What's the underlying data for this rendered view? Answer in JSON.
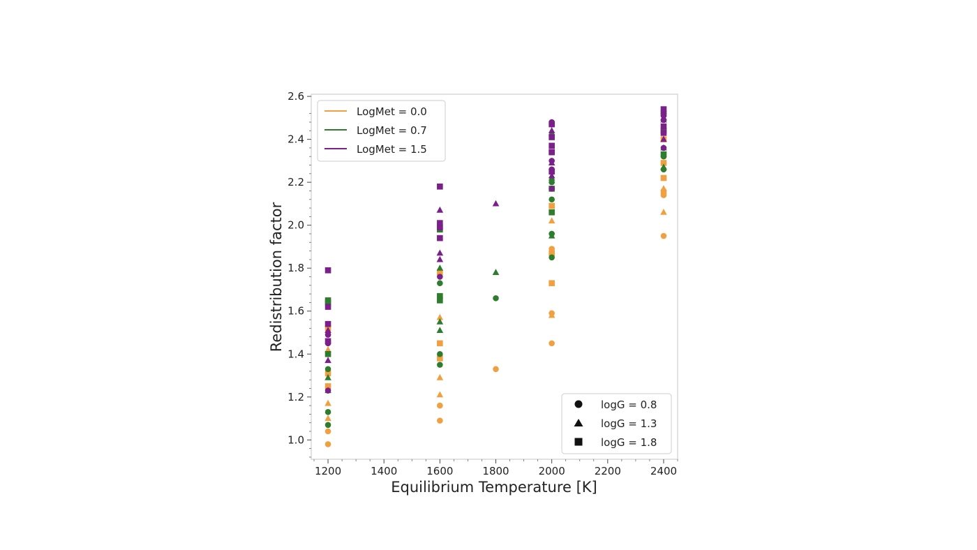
{
  "chart_data": {
    "type": "scatter",
    "xlabel": "Equilibrium Temperature [K]",
    "ylabel": "Redistribution factor",
    "xlim": [
      1140,
      2450
    ],
    "ylim": [
      0.91,
      2.61
    ],
    "xticks": [
      1200,
      1400,
      1600,
      1800,
      2000,
      2200,
      2400
    ],
    "yticks": [
      1.0,
      1.2,
      1.4,
      1.6,
      1.8,
      2.0,
      2.2,
      2.4,
      2.6
    ],
    "grid": false,
    "color_legend": {
      "position": "top-left",
      "entries": [
        {
          "label": "LogMet = 0.0",
          "color": "#F0A040"
        },
        {
          "label": "LogMet = 0.7",
          "color": "#2E7D2E"
        },
        {
          "label": "LogMet = 1.5",
          "color": "#7B1F8A"
        }
      ]
    },
    "marker_legend": {
      "position": "bottom-right",
      "entries": [
        {
          "label": "logG = 0.8",
          "marker": "circle"
        },
        {
          "label": "logG = 1.3",
          "marker": "triangle"
        },
        {
          "label": "logG = 1.8",
          "marker": "square"
        }
      ]
    },
    "series": [
      {
        "logmet": "0.0",
        "logg": "0.8",
        "color": "#F0A040",
        "marker": "circle",
        "points": [
          [
            1200,
            0.98
          ],
          [
            1200,
            1.04
          ],
          [
            1600,
            1.09
          ],
          [
            1600,
            1.16
          ],
          [
            1800,
            1.33
          ],
          [
            2000,
            1.45
          ],
          [
            2000,
            1.59
          ],
          [
            2000,
            1.89
          ],
          [
            2400,
            1.95
          ],
          [
            2400,
            2.14
          ],
          [
            2400,
            2.15
          ],
          [
            2400,
            2.16
          ]
        ]
      },
      {
        "logmet": "0.0",
        "logg": "1.3",
        "color": "#F0A040",
        "marker": "triangle",
        "points": [
          [
            1200,
            1.1
          ],
          [
            1200,
            1.17
          ],
          [
            1200,
            1.42
          ],
          [
            1600,
            1.21
          ],
          [
            1600,
            1.29
          ],
          [
            1600,
            1.57
          ],
          [
            2000,
            1.58
          ],
          [
            2000,
            2.02
          ],
          [
            2400,
            2.06
          ],
          [
            2400,
            2.17
          ]
        ]
      },
      {
        "logmet": "0.0",
        "logg": "1.8",
        "color": "#F0A040",
        "marker": "square",
        "points": [
          [
            1200,
            1.25
          ],
          [
            1200,
            1.31
          ],
          [
            1200,
            1.52
          ],
          [
            1600,
            1.38
          ],
          [
            1600,
            1.45
          ],
          [
            1600,
            1.78
          ],
          [
            2000,
            1.73
          ],
          [
            2000,
            1.87
          ],
          [
            2000,
            2.09
          ],
          [
            2400,
            2.22
          ],
          [
            2400,
            2.29
          ],
          [
            2400,
            2.4
          ]
        ]
      },
      {
        "logmet": "0.7",
        "logg": "0.8",
        "color": "#2E7D2E",
        "marker": "circle",
        "points": [
          [
            1200,
            1.07
          ],
          [
            1200,
            1.13
          ],
          [
            1200,
            1.33
          ],
          [
            1600,
            1.35
          ],
          [
            1600,
            1.4
          ],
          [
            1600,
            1.73
          ],
          [
            1800,
            1.66
          ],
          [
            2000,
            1.85
          ],
          [
            2000,
            1.96
          ],
          [
            2000,
            2.12
          ],
          [
            2000,
            2.2
          ],
          [
            2400,
            2.26
          ],
          [
            2400,
            2.32
          ],
          [
            2400,
            2.45
          ]
        ]
      },
      {
        "logmet": "0.7",
        "logg": "1.3",
        "color": "#2E7D2E",
        "marker": "triangle",
        "points": [
          [
            1200,
            1.23
          ],
          [
            1200,
            1.29
          ],
          [
            1600,
            1.51
          ],
          [
            1600,
            1.55
          ],
          [
            1600,
            1.8
          ],
          [
            1800,
            1.78
          ],
          [
            2000,
            1.95
          ],
          [
            2000,
            2.22
          ],
          [
            2000,
            2.43
          ],
          [
            2400,
            2.27
          ],
          [
            2400,
            2.36
          ],
          [
            2400,
            2.49
          ]
        ]
      },
      {
        "logmet": "0.7",
        "logg": "1.8",
        "color": "#2E7D2E",
        "marker": "square",
        "points": [
          [
            1200,
            1.4
          ],
          [
            1200,
            1.64
          ],
          [
            1200,
            1.65
          ],
          [
            1600,
            1.65
          ],
          [
            1600,
            1.67
          ],
          [
            1600,
            1.98
          ],
          [
            2000,
            2.06
          ],
          [
            2000,
            2.17
          ],
          [
            2000,
            2.34
          ],
          [
            2400,
            2.33
          ],
          [
            2400,
            2.44
          ],
          [
            2400,
            2.52
          ]
        ]
      },
      {
        "logmet": "1.5",
        "logg": "0.8",
        "color": "#7B1F8A",
        "marker": "circle",
        "points": [
          [
            1200,
            1.23
          ],
          [
            1200,
            1.45
          ],
          [
            1200,
            1.49
          ],
          [
            1600,
            1.76
          ],
          [
            2000,
            2.17
          ],
          [
            2000,
            2.26
          ],
          [
            2000,
            2.3
          ],
          [
            2000,
            2.47
          ],
          [
            2000,
            2.48
          ],
          [
            2400,
            2.36
          ],
          [
            2400,
            2.49
          ],
          [
            2400,
            2.51
          ]
        ]
      },
      {
        "logmet": "1.5",
        "logg": "1.3",
        "color": "#7B1F8A",
        "marker": "triangle",
        "points": [
          [
            1200,
            1.37
          ],
          [
            1200,
            1.51
          ],
          [
            1600,
            1.84
          ],
          [
            1600,
            1.87
          ],
          [
            1600,
            2.07
          ],
          [
            1800,
            2.1
          ],
          [
            2000,
            2.23
          ],
          [
            2000,
            2.29
          ],
          [
            2000,
            2.44
          ],
          [
            2400,
            2.4
          ],
          [
            2400,
            2.5
          ],
          [
            2400,
            2.53
          ]
        ]
      },
      {
        "logmet": "1.5",
        "logg": "1.8",
        "color": "#7B1F8A",
        "marker": "square",
        "points": [
          [
            1200,
            1.46
          ],
          [
            1200,
            1.54
          ],
          [
            1200,
            1.62
          ],
          [
            1200,
            1.79
          ],
          [
            1600,
            1.94
          ],
          [
            1600,
            1.99
          ],
          [
            1600,
            2.01
          ],
          [
            1600,
            2.18
          ],
          [
            2000,
            2.25
          ],
          [
            2000,
            2.34
          ],
          [
            2000,
            2.37
          ],
          [
            2000,
            2.41
          ],
          [
            2000,
            2.47
          ],
          [
            2400,
            2.43
          ],
          [
            2400,
            2.46
          ],
          [
            2400,
            2.54
          ]
        ]
      }
    ]
  }
}
